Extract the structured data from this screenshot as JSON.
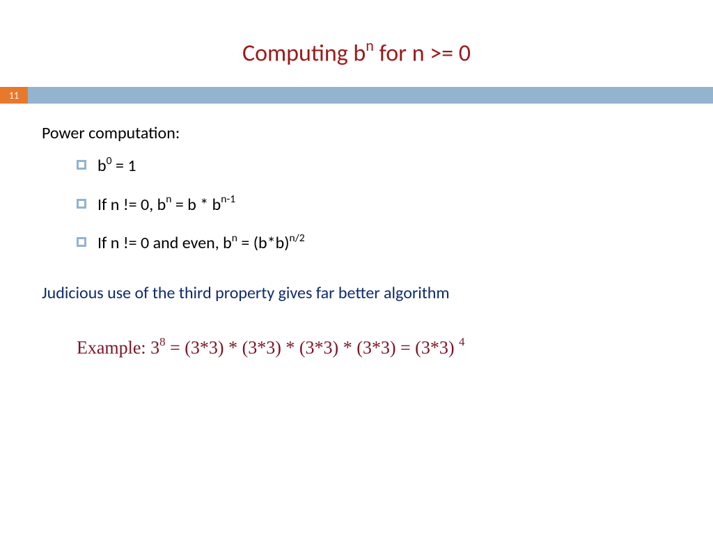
{
  "colors": {
    "title": "#9a1b1b",
    "accent_orange": "#e8792b",
    "accent_blue": "#93b3cf",
    "body_text": "#000000",
    "note_text": "#0f2a6e",
    "example_text": "#7a1426",
    "background": "#ffffff",
    "bullet_border": "#93b3cf",
    "slide_num_text": "#ffffff"
  },
  "typography": {
    "title_fontsize": 34,
    "body_fontsize": 24,
    "example_fontsize": 26,
    "sup_relative": 0.65
  },
  "slide_number": "11",
  "title": {
    "pre": "Computing b",
    "sup": "n",
    "post": " for n >= 0"
  },
  "intro": "Power computation:",
  "bullets": [
    {
      "text_pre": "b",
      "sup1": "0",
      "text_mid": " = 1",
      "sup2": "",
      "text_post": ""
    },
    {
      "text_pre": "If n != 0, b",
      "sup1": "n",
      "text_mid": " = b * b",
      "sup2": "n-1",
      "text_post": ""
    },
    {
      "text_pre": "If n != 0 and even, b",
      "sup1": "n",
      "text_mid": " = (b*b)",
      "sup2": "n/2",
      "text_post": ""
    }
  ],
  "note": "Judicious use of the third property gives far better algorithm",
  "example": {
    "label": "Example: 3",
    "sup1": "8",
    "mid": "  =  (3*3) * (3*3) * (3*3) * (3*3)  =  (3*3) ",
    "sup2": "4"
  }
}
